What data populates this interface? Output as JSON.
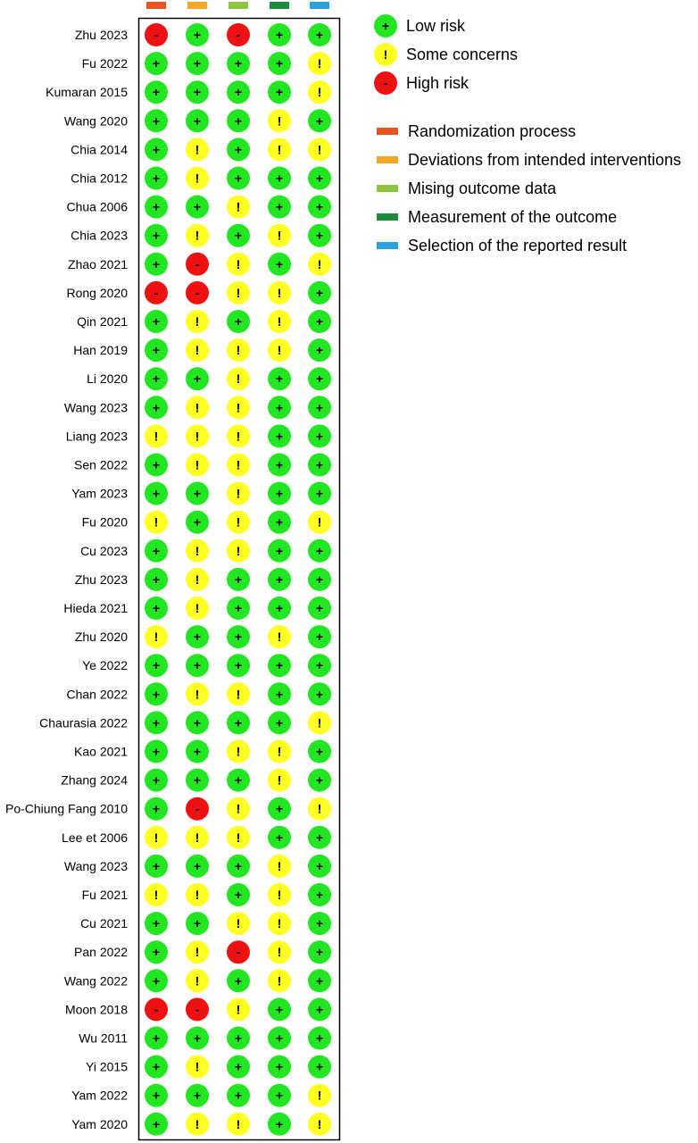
{
  "chart_data": {
    "type": "table",
    "domains": [
      {
        "name": "Randomization process",
        "color": "#e8541e"
      },
      {
        "name": "Deviations from intended interventions",
        "color": "#f5a623"
      },
      {
        "name": "Mising outcome data",
        "color": "#8cc63f"
      },
      {
        "name": "Measurement of the outcome",
        "color": "#1a8c3c"
      },
      {
        "name": "Selection of the reported result",
        "color": "#29a3e0"
      }
    ],
    "judgements": {
      "low": {
        "label": "Low risk",
        "symbol": "+",
        "color": "#22e622"
      },
      "some": {
        "label": "Some concerns",
        "symbol": "!",
        "color": "#ffff22"
      },
      "high": {
        "label": "High risk",
        "symbol": "-",
        "color": "#ee1111"
      }
    },
    "studies": [
      {
        "name": "Zhu 2023",
        "ratings": [
          "high",
          "low",
          "high",
          "low",
          "low"
        ]
      },
      {
        "name": "Fu 2022",
        "ratings": [
          "low",
          "low",
          "low",
          "low",
          "some"
        ]
      },
      {
        "name": "Kumaran 2015",
        "ratings": [
          "low",
          "low",
          "low",
          "low",
          "some"
        ]
      },
      {
        "name": "Wang 2020",
        "ratings": [
          "low",
          "low",
          "low",
          "some",
          "low"
        ]
      },
      {
        "name": "Chia 2014",
        "ratings": [
          "low",
          "some",
          "low",
          "some",
          "some"
        ]
      },
      {
        "name": "Chia 2012",
        "ratings": [
          "low",
          "some",
          "low",
          "low",
          "low"
        ]
      },
      {
        "name": "Chua 2006",
        "ratings": [
          "low",
          "low",
          "some",
          "low",
          "low"
        ]
      },
      {
        "name": "Chia 2023",
        "ratings": [
          "low",
          "some",
          "low",
          "some",
          "low"
        ]
      },
      {
        "name": "Zhao 2021",
        "ratings": [
          "low",
          "high",
          "some",
          "low",
          "some"
        ]
      },
      {
        "name": "Rong 2020",
        "ratings": [
          "high",
          "high",
          "some",
          "some",
          "low"
        ]
      },
      {
        "name": "Qin 2021",
        "ratings": [
          "low",
          "some",
          "low",
          "some",
          "low"
        ]
      },
      {
        "name": "Han 2019",
        "ratings": [
          "low",
          "some",
          "some",
          "some",
          "low"
        ]
      },
      {
        "name": "Li 2020",
        "ratings": [
          "low",
          "low",
          "some",
          "low",
          "low"
        ]
      },
      {
        "name": "Wang 2023",
        "ratings": [
          "low",
          "some",
          "some",
          "low",
          "low"
        ]
      },
      {
        "name": "Liang 2023",
        "ratings": [
          "some",
          "some",
          "some",
          "low",
          "low"
        ]
      },
      {
        "name": "Sen 2022",
        "ratings": [
          "low",
          "some",
          "some",
          "low",
          "low"
        ]
      },
      {
        "name": "Yam 2023",
        "ratings": [
          "low",
          "low",
          "some",
          "low",
          "low"
        ]
      },
      {
        "name": "Fu 2020",
        "ratings": [
          "some",
          "low",
          "some",
          "low",
          "some"
        ]
      },
      {
        "name": "Cu 2023",
        "ratings": [
          "low",
          "some",
          "some",
          "low",
          "low"
        ]
      },
      {
        "name": "Zhu 2023",
        "ratings": [
          "low",
          "some",
          "low",
          "low",
          "low"
        ]
      },
      {
        "name": "Hieda 2021",
        "ratings": [
          "low",
          "some",
          "low",
          "low",
          "low"
        ]
      },
      {
        "name": "Zhu 2020",
        "ratings": [
          "some",
          "low",
          "low",
          "some",
          "low"
        ]
      },
      {
        "name": "Ye 2022",
        "ratings": [
          "low",
          "low",
          "low",
          "low",
          "low"
        ]
      },
      {
        "name": "Chan 2022",
        "ratings": [
          "low",
          "some",
          "some",
          "low",
          "low"
        ]
      },
      {
        "name": "Chaurasia 2022",
        "ratings": [
          "low",
          "low",
          "low",
          "low",
          "some"
        ]
      },
      {
        "name": "Kao 2021",
        "ratings": [
          "low",
          "low",
          "some",
          "some",
          "low"
        ]
      },
      {
        "name": "Zhang 2024",
        "ratings": [
          "low",
          "low",
          "low",
          "some",
          "low"
        ]
      },
      {
        "name": "Po-Chiung Fang 2010",
        "ratings": [
          "low",
          "high",
          "some",
          "low",
          "some"
        ]
      },
      {
        "name": "Lee et 2006",
        "ratings": [
          "some",
          "some",
          "some",
          "low",
          "low"
        ]
      },
      {
        "name": "Wang 2023",
        "ratings": [
          "low",
          "low",
          "low",
          "some",
          "low"
        ]
      },
      {
        "name": "Fu 2021",
        "ratings": [
          "some",
          "some",
          "low",
          "some",
          "low"
        ]
      },
      {
        "name": "Cu 2021",
        "ratings": [
          "low",
          "low",
          "some",
          "some",
          "low"
        ]
      },
      {
        "name": "Pan 2022",
        "ratings": [
          "low",
          "some",
          "high",
          "some",
          "low"
        ]
      },
      {
        "name": "Wang 2022",
        "ratings": [
          "low",
          "some",
          "low",
          "some",
          "low"
        ]
      },
      {
        "name": "Moon 2018",
        "ratings": [
          "high",
          "high",
          "some",
          "low",
          "low"
        ]
      },
      {
        "name": "Wu 2011",
        "ratings": [
          "low",
          "low",
          "low",
          "low",
          "low"
        ]
      },
      {
        "name": "Yi 2015",
        "ratings": [
          "low",
          "some",
          "low",
          "low",
          "low"
        ]
      },
      {
        "name": "Yam 2022",
        "ratings": [
          "low",
          "low",
          "low",
          "low",
          "some"
        ]
      },
      {
        "name": "Yam 2020",
        "ratings": [
          "low",
          "some",
          "some",
          "low",
          "some"
        ]
      }
    ]
  }
}
